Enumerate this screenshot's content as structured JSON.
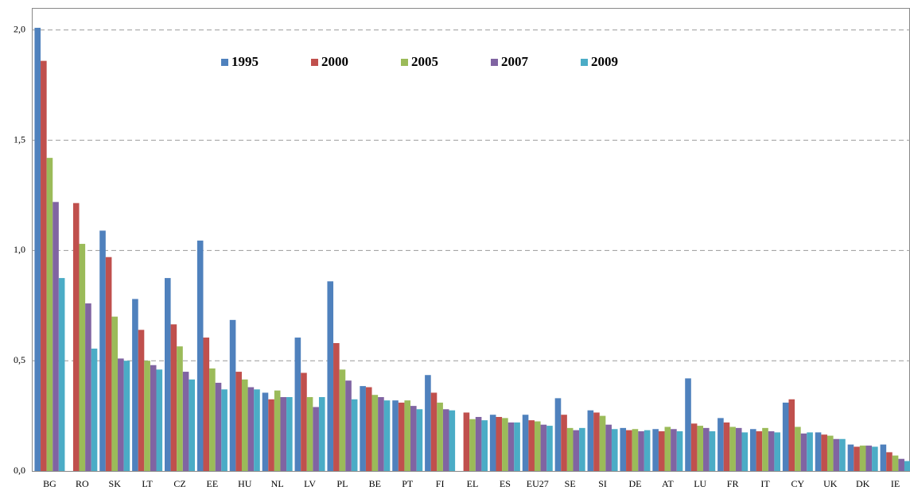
{
  "chart_data": {
    "type": "bar",
    "categories": [
      "BG",
      "RO",
      "SK",
      "LT",
      "CZ",
      "EE",
      "HU",
      "NL",
      "LV",
      "PL",
      "BE",
      "PT",
      "FI",
      "EL",
      "ES",
      "EU27",
      "SE",
      "SI",
      "DE",
      "AT",
      "LU",
      "FR",
      "IT",
      "CY",
      "UK",
      "DK",
      "IE"
    ],
    "series": [
      {
        "name": "1995",
        "color": "#4f81bd",
        "values": [
          2.01,
          null,
          1.09,
          0.78,
          0.875,
          1.045,
          0.685,
          0.355,
          0.605,
          0.86,
          0.385,
          0.32,
          0.435,
          null,
          0.255,
          0.255,
          0.33,
          0.275,
          0.195,
          0.19,
          0.42,
          0.24,
          0.19,
          0.31,
          0.175,
          0.12,
          0.12
        ]
      },
      {
        "name": "2000",
        "color": "#c0504d",
        "values": [
          1.86,
          1.215,
          0.97,
          0.64,
          0.665,
          0.605,
          0.45,
          0.325,
          0.445,
          0.58,
          0.38,
          0.31,
          0.355,
          0.265,
          0.245,
          0.23,
          0.255,
          0.265,
          0.185,
          0.18,
          0.215,
          0.22,
          0.18,
          0.325,
          0.165,
          0.11,
          0.085
        ]
      },
      {
        "name": "2005",
        "color": "#9bbb59",
        "values": [
          1.42,
          1.03,
          0.7,
          0.5,
          0.565,
          0.465,
          0.415,
          0.365,
          0.335,
          0.46,
          0.345,
          0.32,
          0.31,
          0.235,
          0.24,
          0.225,
          0.195,
          0.25,
          0.19,
          0.2,
          0.205,
          0.2,
          0.195,
          0.2,
          0.16,
          0.115,
          0.07
        ]
      },
      {
        "name": "2007",
        "color": "#8064a2",
        "values": [
          1.22,
          0.76,
          0.51,
          0.48,
          0.45,
          0.4,
          0.38,
          0.335,
          0.29,
          0.41,
          0.335,
          0.295,
          0.28,
          0.245,
          0.22,
          0.21,
          0.185,
          0.21,
          0.18,
          0.19,
          0.195,
          0.195,
          0.18,
          0.17,
          0.145,
          0.115,
          0.055
        ]
      },
      {
        "name": "2009",
        "color": "#4bacc6",
        "values": [
          0.875,
          0.555,
          0.5,
          0.46,
          0.415,
          0.37,
          0.37,
          0.335,
          0.335,
          0.325,
          0.32,
          0.28,
          0.275,
          0.23,
          0.22,
          0.205,
          0.195,
          0.19,
          0.185,
          0.18,
          0.18,
          0.175,
          0.175,
          0.175,
          0.145,
          0.11,
          0.045
        ]
      }
    ],
    "ylim": [
      0,
      2.1
    ],
    "yticks": [
      {
        "value": 0,
        "label": "0,0"
      },
      {
        "value": 0.5,
        "label": "0,5"
      },
      {
        "value": 1,
        "label": "1,0"
      },
      {
        "value": 1.5,
        "label": "1,5"
      },
      {
        "value": 2,
        "label": "2,0"
      }
    ],
    "grid": true,
    "legend": "top"
  }
}
